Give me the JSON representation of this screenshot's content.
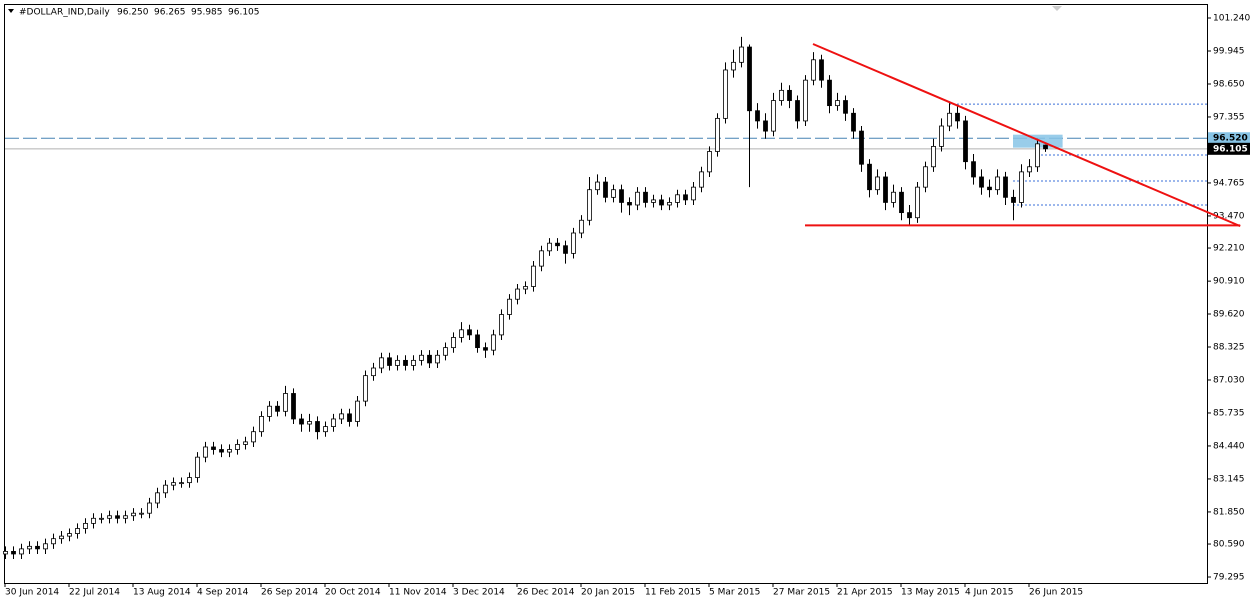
{
  "chart_data": {
    "type": "candlestick",
    "symbol": "#DOLLAR_IND,Daily",
    "header_ohlc": [
      "96.250",
      "96.265",
      "95.985",
      "96.105"
    ],
    "open": [
      80.2,
      80.3,
      80.2,
      80.4,
      80.5,
      80.4,
      80.6,
      80.8,
      80.9,
      81.0,
      81.2,
      81.4,
      81.6,
      81.6,
      81.7,
      81.6,
      81.7,
      81.8,
      81.8,
      82.2,
      82.6,
      82.9,
      83.0,
      83.0,
      83.2,
      84.0,
      84.4,
      84.3,
      84.2,
      84.3,
      84.5,
      84.6,
      85.0,
      85.6,
      86.0,
      85.8,
      86.5,
      85.5,
      85.3,
      85.4,
      85.0,
      85.2,
      85.5,
      85.7,
      85.4,
      86.2,
      87.2,
      87.5,
      87.9,
      87.6,
      87.8,
      87.6,
      87.8,
      88.0,
      87.7,
      88.0,
      88.3,
      88.7,
      89.0,
      88.8,
      88.3,
      88.2,
      88.8,
      89.6,
      90.2,
      90.6,
      90.7,
      91.5,
      92.1,
      92.4,
      92.3,
      92.0,
      92.8,
      93.3,
      94.5,
      94.8,
      94.2,
      94.5,
      94.0,
      93.9,
      94.4,
      94.0,
      94.1,
      93.9,
      94.0,
      94.3,
      94.1,
      94.6,
      95.2,
      96.0,
      97.3,
      99.2,
      99.5,
      100.1,
      97.6,
      97.2,
      96.8,
      98.0,
      98.4,
      98.0,
      97.2,
      98.8,
      99.6,
      98.8,
      97.8,
      98.0,
      97.5,
      96.8,
      95.5,
      94.5,
      95.0,
      94.0,
      94.4,
      93.6,
      93.4,
      94.6,
      95.4,
      96.2,
      97.0,
      97.5,
      97.2,
      95.6,
      95.0,
      94.6,
      94.5,
      95.0,
      94.2,
      94.0,
      95.2,
      95.4,
      96.25
    ],
    "high": [
      80.5,
      80.5,
      80.6,
      80.7,
      80.7,
      80.8,
      81.0,
      81.1,
      81.2,
      81.4,
      81.6,
      81.8,
      81.8,
      81.9,
      81.9,
      81.9,
      82.0,
      82.0,
      82.4,
      82.8,
      83.1,
      83.2,
      83.2,
      83.4,
      84.2,
      84.6,
      84.6,
      84.5,
      84.5,
      84.7,
      84.8,
      85.2,
      85.8,
      86.2,
      86.2,
      86.8,
      86.7,
      85.7,
      85.7,
      85.6,
      85.4,
      85.7,
      85.9,
      85.9,
      86.4,
      87.4,
      87.7,
      88.1,
      88.1,
      88.0,
      88.0,
      88.0,
      88.2,
      88.2,
      88.2,
      88.5,
      88.9,
      89.3,
      89.2,
      89.0,
      88.5,
      89.0,
      89.8,
      90.4,
      90.8,
      90.9,
      91.7,
      92.3,
      92.6,
      92.6,
      92.5,
      93.0,
      93.5,
      95.0,
      95.1,
      95.0,
      94.7,
      94.7,
      94.2,
      94.6,
      94.6,
      94.3,
      94.3,
      94.2,
      94.5,
      94.5,
      94.8,
      95.4,
      96.2,
      97.5,
      99.5,
      100.0,
      100.5,
      100.2,
      97.9,
      97.5,
      98.3,
      98.7,
      98.6,
      98.2,
      99.0,
      99.9,
      99.8,
      99.0,
      98.3,
      98.2,
      97.7,
      97.0,
      95.7,
      95.3,
      95.2,
      94.7,
      94.6,
      93.9,
      94.8,
      95.6,
      96.5,
      97.3,
      97.9,
      97.8,
      97.4,
      95.9,
      95.3,
      94.9,
      95.3,
      95.2,
      94.5,
      95.5,
      95.7,
      96.5,
      96.265
    ],
    "low": [
      80.0,
      80.0,
      80.0,
      80.2,
      80.2,
      80.2,
      80.4,
      80.6,
      80.7,
      80.8,
      81.0,
      81.2,
      81.4,
      81.4,
      81.4,
      81.4,
      81.5,
      81.6,
      81.6,
      82.0,
      82.4,
      82.7,
      82.8,
      82.8,
      83.0,
      83.8,
      84.1,
      84.0,
      84.0,
      84.1,
      84.3,
      84.4,
      84.8,
      85.4,
      85.6,
      85.6,
      85.3,
      85.0,
      85.0,
      84.7,
      84.8,
      85.0,
      85.3,
      85.2,
      85.2,
      86.0,
      87.0,
      87.3,
      87.4,
      87.4,
      87.4,
      87.4,
      87.6,
      87.5,
      87.5,
      87.8,
      88.1,
      88.5,
      88.6,
      88.1,
      87.9,
      88.0,
      88.6,
      89.4,
      90.0,
      90.4,
      90.5,
      91.3,
      91.9,
      92.1,
      91.6,
      91.8,
      92.6,
      93.1,
      94.3,
      94.0,
      94.0,
      93.6,
      93.5,
      93.7,
      93.8,
      93.8,
      93.7,
      93.7,
      93.8,
      93.9,
      93.9,
      94.4,
      95.0,
      95.8,
      97.1,
      98.9,
      99.3,
      94.6,
      96.9,
      96.5,
      96.6,
      97.8,
      97.7,
      96.9,
      97.0,
      98.6,
      98.5,
      97.5,
      97.6,
      97.2,
      96.5,
      95.2,
      94.2,
      94.3,
      93.7,
      93.8,
      93.3,
      93.1,
      93.2,
      94.4,
      95.2,
      96.0,
      96.8,
      96.9,
      95.3,
      94.7,
      94.3,
      94.2,
      94.3,
      93.9,
      93.3,
      93.8,
      95.0,
      95.2,
      95.985
    ],
    "close": [
      80.3,
      80.2,
      80.4,
      80.5,
      80.4,
      80.6,
      80.8,
      80.9,
      81.0,
      81.2,
      81.4,
      81.6,
      81.6,
      81.7,
      81.6,
      81.7,
      81.8,
      81.8,
      82.2,
      82.6,
      82.9,
      83.0,
      83.0,
      83.2,
      84.0,
      84.4,
      84.3,
      84.2,
      84.3,
      84.5,
      84.6,
      85.0,
      85.6,
      86.0,
      85.8,
      86.5,
      85.5,
      85.3,
      85.4,
      85.0,
      85.2,
      85.5,
      85.7,
      85.4,
      86.2,
      87.2,
      87.5,
      87.9,
      87.6,
      87.8,
      87.6,
      87.8,
      88.0,
      87.7,
      88.0,
      88.3,
      88.7,
      89.0,
      88.8,
      88.3,
      88.2,
      88.8,
      89.6,
      90.2,
      90.6,
      90.7,
      91.5,
      92.1,
      92.4,
      92.3,
      92.0,
      92.8,
      93.3,
      94.5,
      94.8,
      94.2,
      94.5,
      94.0,
      93.9,
      94.4,
      94.0,
      94.1,
      93.9,
      94.0,
      94.3,
      94.1,
      94.6,
      95.2,
      96.0,
      97.3,
      99.2,
      99.5,
      100.1,
      97.6,
      97.2,
      96.8,
      98.0,
      98.4,
      98.0,
      97.2,
      98.8,
      99.6,
      98.8,
      97.8,
      98.0,
      97.5,
      96.8,
      95.5,
      94.5,
      95.0,
      94.0,
      94.4,
      93.6,
      93.4,
      94.6,
      95.4,
      96.2,
      97.0,
      97.5,
      97.2,
      95.6,
      95.0,
      94.6,
      94.5,
      95.0,
      94.2,
      94.0,
      95.2,
      95.4,
      96.3,
      96.105
    ],
    "ylim": [
      79.06,
      101.79
    ],
    "yticks": [
      {
        "value": 101.24,
        "label": "101.240"
      },
      {
        "value": 99.945,
        "label": "99.945"
      },
      {
        "value": 98.65,
        "label": "98.650"
      },
      {
        "value": 97.355,
        "label": "97.355"
      },
      {
        "value": 94.765,
        "label": "94.765"
      },
      {
        "value": 93.47,
        "label": "93.470"
      },
      {
        "value": 92.21,
        "label": "92.210"
      },
      {
        "value": 90.91,
        "label": "90.910"
      },
      {
        "value": 89.62,
        "label": "89.620"
      },
      {
        "value": 88.325,
        "label": "88.325"
      },
      {
        "value": 87.03,
        "label": "87.030"
      },
      {
        "value": 85.735,
        "label": "85.735"
      },
      {
        "value": 84.44,
        "label": "84.440"
      },
      {
        "value": 83.145,
        "label": "83.145"
      },
      {
        "value": 81.85,
        "label": "81.850"
      },
      {
        "value": 80.59,
        "label": "80.590"
      },
      {
        "value": 79.295,
        "label": "79.295"
      }
    ],
    "xticks": [
      {
        "value": 0,
        "label": "30 Jun 2014"
      },
      {
        "value": 8,
        "label": "22 Jul 2014"
      },
      {
        "value": 16,
        "label": "13 Aug 2014"
      },
      {
        "value": 24,
        "label": "4 Sep 2014"
      },
      {
        "value": 32,
        "label": "26 Sep 2014"
      },
      {
        "value": 40,
        "label": "20 Oct 2014"
      },
      {
        "value": 48,
        "label": "11 Nov 2014"
      },
      {
        "value": 56,
        "label": "3 Dec 2014"
      },
      {
        "value": 64,
        "label": "26 Dec 2014"
      },
      {
        "value": 72,
        "label": "20 Jan 2015"
      },
      {
        "value": 80,
        "label": "11 Feb 2015"
      },
      {
        "value": 88,
        "label": "5 Mar 2015"
      },
      {
        "value": 96,
        "label": "27 Mar 2015"
      },
      {
        "value": 104,
        "label": "21 Apr 2015"
      },
      {
        "value": 112,
        "label": "13 May 2015"
      },
      {
        "value": 120,
        "label": "4 Jun 2015"
      },
      {
        "value": 128,
        "label": "26 Jun 2015"
      }
    ],
    "price_lines": [
      {
        "value": 96.52,
        "label": "96.520",
        "color": "#4682b4",
        "label_bg": "#87c4e6",
        "label_color": "#000000",
        "dash": true
      },
      {
        "value": 96.105,
        "label": "96.105",
        "color": "#b0b0b0",
        "label_bg": "#000000",
        "label_color": "#ffffff",
        "dash": false
      }
    ],
    "levels": [
      {
        "from": 118,
        "value": 97.86
      },
      {
        "from": 129,
        "value": 95.86
      },
      {
        "from": 126,
        "value": 94.84
      },
      {
        "from": 126,
        "value": 93.9
      }
    ],
    "trendlines": [
      {
        "from": [
          101,
          100.22
        ],
        "to": [
          154.4,
          93.07
        ]
      },
      {
        "from": [
          100,
          93.1
        ],
        "to": [
          154.4,
          93.1
        ]
      }
    ],
    "zone": {
      "from": 126,
      "to": 132.2,
      "top": 96.66,
      "bottom": 96.15
    },
    "bull_color": "#ffffff",
    "bear_color": "#000000",
    "trend_color": "#ee1111",
    "level_color": "#3a6fd8"
  }
}
